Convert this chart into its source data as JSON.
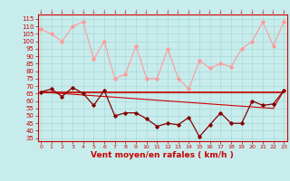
{
  "x": [
    0,
    1,
    2,
    3,
    4,
    5,
    6,
    7,
    8,
    9,
    10,
    11,
    12,
    13,
    14,
    15,
    16,
    17,
    18,
    19,
    20,
    21,
    22,
    23
  ],
  "light_pink_line": [
    108,
    105,
    100,
    110,
    113,
    88,
    100,
    75,
    78,
    97,
    75,
    75,
    95,
    75,
    68,
    87,
    82,
    85,
    83,
    95,
    100,
    113,
    97,
    113
  ],
  "dark_flat_line": [
    66,
    66,
    66,
    66,
    66,
    66,
    66,
    66,
    66,
    66,
    66,
    66,
    66,
    66,
    66,
    66,
    66,
    66,
    66,
    66,
    66,
    66,
    66,
    66
  ],
  "dark_decline_line": [
    66,
    65.5,
    65,
    64.5,
    64,
    63.5,
    63,
    62.5,
    62,
    61.5,
    61,
    60.5,
    60,
    59.5,
    59,
    58.5,
    58,
    57.5,
    57,
    56.5,
    56,
    55.5,
    55,
    67
  ],
  "dark_red_zigzag": [
    66,
    68,
    63,
    69,
    65,
    57,
    67,
    50,
    52,
    52,
    48,
    43,
    45,
    44,
    49,
    36,
    44,
    52,
    45,
    45,
    60,
    57,
    58,
    67
  ],
  "xlabel": "Vent moyen/en rafales ( km/h )",
  "ylabel_ticks": [
    35,
    40,
    45,
    50,
    55,
    60,
    65,
    70,
    75,
    80,
    85,
    90,
    95,
    100,
    105,
    110,
    115
  ],
  "ylim": [
    33,
    118
  ],
  "xlim": [
    -0.3,
    23.3
  ],
  "bg_color": "#c8ecec",
  "grid_color": "#a8d8d8",
  "light_pink_color": "#ff9999",
  "dark_line_color": "#cc0000",
  "zigzag_color": "#880000",
  "axis_label_color": "#cc0000",
  "tick_color": "#cc0000"
}
